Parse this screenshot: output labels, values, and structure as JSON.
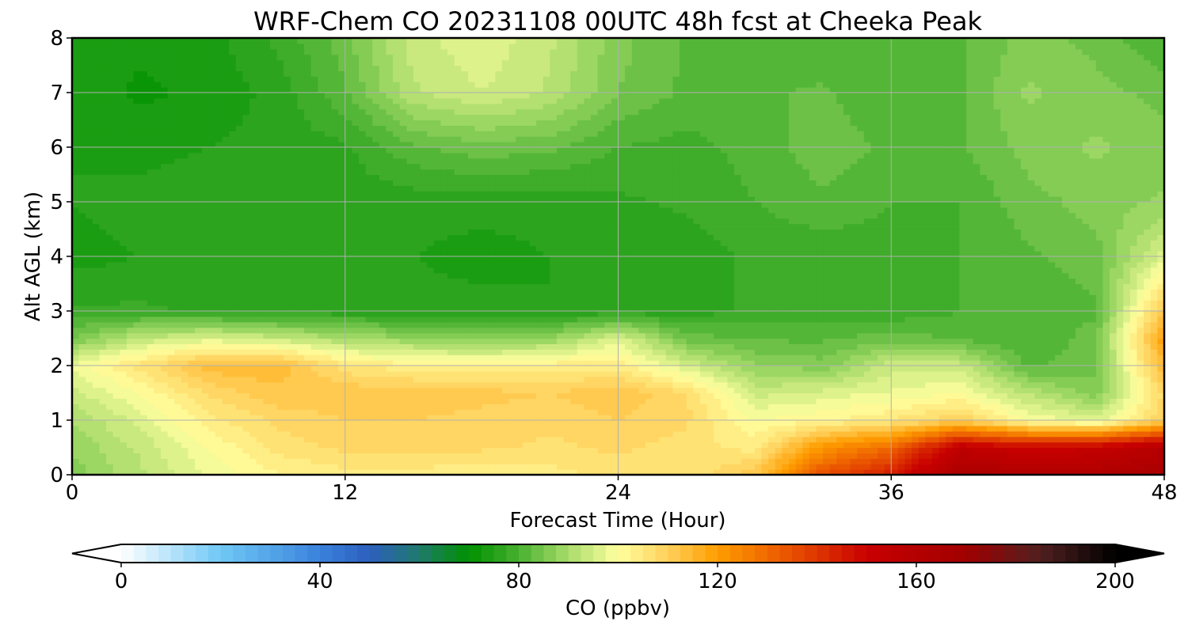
{
  "chart_data": {
    "type": "heatmap",
    "title": "WRF-Chem CO  20231108 00UTC 48h fcst at Cheeka Peak",
    "xlabel": "Forecast Time (Hour)",
    "ylabel": "Alt AGL (km)",
    "xlim": [
      0,
      48
    ],
    "ylim": [
      0,
      8
    ],
    "x_ticks": [
      0,
      12,
      24,
      36,
      48
    ],
    "x_tick_labels": [
      "0",
      "12",
      "24",
      "36",
      "48"
    ],
    "y_ticks": [
      0,
      1,
      2,
      3,
      4,
      5,
      6,
      7,
      8
    ],
    "y_tick_labels": [
      "0",
      "1",
      "2",
      "3",
      "4",
      "5",
      "6",
      "7",
      "8"
    ],
    "grid": true,
    "x": [
      0,
      3,
      6,
      9,
      12,
      15,
      18,
      21,
      24,
      27,
      30,
      33,
      36,
      39,
      42,
      45,
      48
    ],
    "y": [
      0,
      0.5,
      1,
      1.5,
      2,
      2.5,
      3,
      4,
      5,
      6,
      7,
      8
    ],
    "z": [
      [
        86,
        92,
        98,
        102,
        104,
        104,
        103,
        104,
        106,
        105,
        112,
        135,
        145,
        165,
        162,
        163,
        165
      ],
      [
        88,
        93,
        100,
        106,
        108,
        108,
        108,
        107,
        108,
        106,
        104,
        122,
        130,
        155,
        150,
        152,
        160
      ],
      [
        90,
        96,
        104,
        108,
        110,
        110,
        109,
        108,
        110,
        108,
        100,
        102,
        105,
        110,
        100,
        96,
        110
      ],
      [
        94,
        100,
        108,
        112,
        112,
        112,
        111,
        110,
        112,
        108,
        94,
        96,
        98,
        100,
        92,
        86,
        108
      ],
      [
        98,
        106,
        114,
        114,
        106,
        103,
        103,
        104,
        104,
        95,
        88,
        86,
        94,
        94,
        82,
        84,
        115
      ],
      [
        85,
        93,
        96,
        94,
        90,
        88,
        86,
        88,
        96,
        84,
        82,
        82,
        84,
        82,
        80,
        84,
        120
      ],
      [
        78,
        78,
        77,
        76,
        76,
        76,
        76,
        75,
        76,
        76,
        78,
        79,
        78,
        80,
        80,
        82,
        112
      ],
      [
        74,
        75,
        76,
        76,
        76,
        75,
        74,
        75,
        76,
        76,
        78,
        78,
        79,
        80,
        82,
        84,
        96
      ],
      [
        75,
        76,
        77,
        77,
        76,
        76,
        76,
        76,
        77,
        78,
        80,
        82,
        80,
        80,
        84,
        86,
        88
      ],
      [
        75,
        74,
        75,
        76,
        77,
        82,
        84,
        83,
        80,
        79,
        81,
        84,
        82,
        82,
        86,
        88,
        86
      ],
      [
        74,
        72,
        73,
        76,
        82,
        92,
        95,
        92,
        85,
        82,
        82,
        83,
        80,
        82,
        88,
        86,
        84
      ],
      [
        75,
        73,
        74,
        78,
        84,
        94,
        97,
        93,
        86,
        82,
        80,
        80,
        80,
        82,
        86,
        84,
        80
      ]
    ],
    "colorbar": {
      "label": "CO  (ppbv)",
      "min": 0,
      "max": 200,
      "step": 2.5,
      "extend": "both",
      "ticks": [
        0,
        40,
        80,
        120,
        160,
        200
      ],
      "tick_labels": [
        "0",
        "40",
        "80",
        "120",
        "160",
        "200"
      ],
      "color_stops": [
        [
          0,
          "#ffffff"
        ],
        [
          20,
          "#6fc8f5"
        ],
        [
          40,
          "#3a82dc"
        ],
        [
          50,
          "#2d5fbe"
        ],
        [
          60,
          "#1f7a6a"
        ],
        [
          70,
          "#009100"
        ],
        [
          80,
          "#48b030"
        ],
        [
          90,
          "#a8dc6a"
        ],
        [
          100,
          "#ffff9e"
        ],
        [
          110,
          "#ffd05a"
        ],
        [
          120,
          "#ff9d00"
        ],
        [
          135,
          "#e85000"
        ],
        [
          150,
          "#c80000"
        ],
        [
          170,
          "#a00000"
        ],
        [
          185,
          "#502020"
        ],
        [
          200,
          "#000000"
        ]
      ],
      "under_color": "#ffffff",
      "over_color": "#000000"
    }
  }
}
